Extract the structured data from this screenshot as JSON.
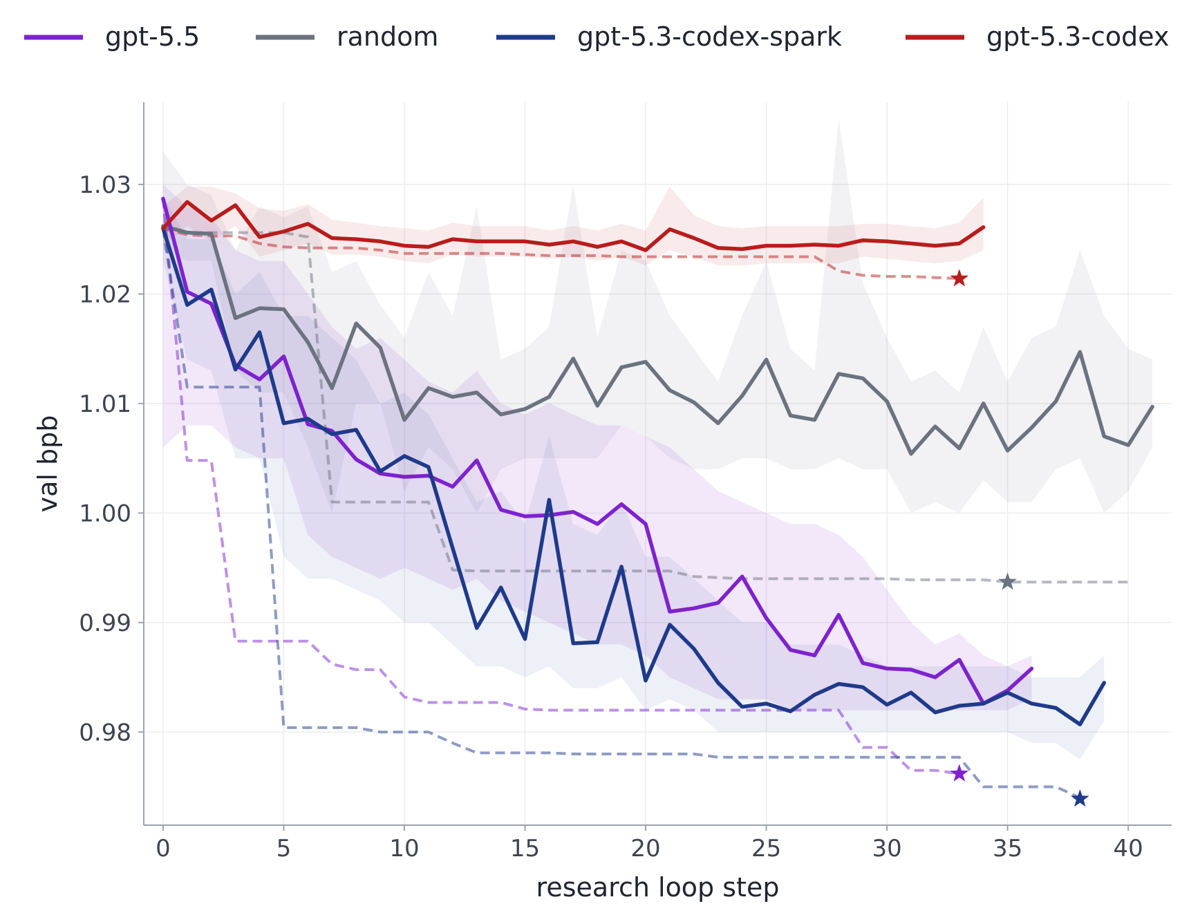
{
  "chart_data": {
    "type": "line",
    "xlabel": "research loop step",
    "ylabel": "val bpb",
    "xlim": [
      -0.8,
      41.8
    ],
    "ylim": [
      0.9715,
      1.0375
    ],
    "xticks": [
      0,
      5,
      10,
      15,
      20,
      25,
      30,
      35,
      40
    ],
    "yticks": [
      0.98,
      0.99,
      1.0,
      1.01,
      1.02,
      1.03
    ],
    "ytick_labels": [
      "0.98",
      "0.99",
      "1.00",
      "1.01",
      "1.02",
      "1.03"
    ],
    "grid": true,
    "legend_position": "top",
    "series": [
      {
        "name": "gpt-5.5",
        "color": "#7e22ce",
        "x": [
          0,
          1,
          2,
          3,
          4,
          5,
          6,
          7,
          8,
          9,
          10,
          11,
          12,
          13,
          14,
          15,
          16,
          17,
          18,
          19,
          20,
          21,
          22,
          23,
          24,
          25,
          26,
          27,
          28,
          29,
          30,
          31,
          32,
          33,
          34,
          35,
          36
        ],
        "values": [
          1.0287,
          1.0202,
          1.0191,
          1.0135,
          1.0122,
          1.0143,
          1.0081,
          1.0075,
          1.0049,
          1.0036,
          1.0033,
          1.0034,
          1.0024,
          1.0048,
          1.0003,
          0.9997,
          0.9998,
          1.0001,
          0.999,
          1.0008,
          0.999,
          0.991,
          0.9913,
          0.9918,
          0.9942,
          0.9904,
          0.9875,
          0.987,
          0.9907,
          0.9863,
          0.9858,
          0.9857,
          0.985,
          0.9866,
          0.9826,
          0.9838,
          0.9858
        ],
        "band_upper": [
          1.03,
          1.028,
          1.027,
          1.024,
          1.023,
          1.023,
          1.02,
          1.017,
          1.015,
          1.016,
          1.014,
          1.012,
          1.011,
          1.013,
          1.01,
          1.009,
          1.01,
          1.009,
          1.008,
          1.008,
          1.007,
          1.006,
          1.004,
          1.002,
          1.001,
          1.0,
          0.999,
          0.999,
          0.998,
          0.996,
          0.993,
          0.99,
          0.988,
          0.989,
          0.987,
          0.986,
          0.987
        ],
        "band_lower": [
          1.006,
          1.008,
          1.008,
          1.006,
          1.005,
          1.005,
          0.998,
          0.996,
          0.995,
          0.994,
          0.995,
          0.994,
          0.993,
          0.994,
          0.992,
          0.991,
          0.99,
          0.989,
          0.988,
          0.988,
          0.987,
          0.985,
          0.984,
          0.983,
          0.983,
          0.983,
          0.982,
          0.982,
          0.982,
          0.982,
          0.982,
          0.982,
          0.982,
          0.982,
          0.982,
          0.982,
          0.983
        ],
        "best_so_far_x": [
          0,
          1,
          2,
          3,
          4,
          5,
          6,
          7,
          8,
          9,
          10,
          11,
          12,
          13,
          14,
          15,
          16,
          17,
          18,
          19,
          20,
          21,
          22,
          23,
          24,
          25,
          26,
          27,
          28,
          29,
          30,
          31,
          32,
          33
        ],
        "best_so_far": [
          1.0287,
          1.0048,
          1.0048,
          0.9883,
          0.9883,
          0.9883,
          0.9883,
          0.9862,
          0.9857,
          0.9857,
          0.9832,
          0.9827,
          0.9827,
          0.9827,
          0.9827,
          0.9821,
          0.982,
          0.982,
          0.982,
          0.982,
          0.982,
          0.982,
          0.982,
          0.982,
          0.982,
          0.982,
          0.982,
          0.982,
          0.982,
          0.9786,
          0.9786,
          0.9765,
          0.9765,
          0.9762
        ],
        "best": {
          "x": 33,
          "y": 0.9762
        }
      },
      {
        "name": "random",
        "color": "#6b7280",
        "x": [
          0,
          1,
          2,
          3,
          4,
          5,
          6,
          7,
          8,
          9,
          10,
          11,
          12,
          13,
          14,
          15,
          16,
          17,
          18,
          19,
          20,
          21,
          22,
          23,
          24,
          25,
          26,
          27,
          28,
          29,
          30,
          31,
          32,
          33,
          34,
          35,
          36,
          37,
          38,
          39,
          40,
          41
        ],
        "values": [
          1.0262,
          1.0256,
          1.0255,
          1.0178,
          1.0187,
          1.0186,
          1.0156,
          1.0114,
          1.0173,
          1.0151,
          1.0085,
          1.0114,
          1.0106,
          1.011,
          1.009,
          1.0095,
          1.0106,
          1.0141,
          1.0098,
          1.0133,
          1.0138,
          1.0112,
          1.0101,
          1.0082,
          1.0107,
          1.014,
          1.0089,
          1.0085,
          1.0127,
          1.0123,
          1.0102,
          1.0054,
          1.0079,
          1.0059,
          1.01,
          1.0057,
          1.0078,
          1.0102,
          1.0147,
          1.007,
          1.0062,
          1.0097
        ],
        "band_upper": [
          1.033,
          1.03,
          1.029,
          1.024,
          1.028,
          1.027,
          1.028,
          1.022,
          1.023,
          1.019,
          1.016,
          1.022,
          1.018,
          1.028,
          1.014,
          1.015,
          1.017,
          1.03,
          1.016,
          1.024,
          1.023,
          1.018,
          1.015,
          1.012,
          1.018,
          1.023,
          1.015,
          1.013,
          1.036,
          1.021,
          1.016,
          1.012,
          1.013,
          1.011,
          1.017,
          1.012,
          1.016,
          1.017,
          1.024,
          1.018,
          1.015,
          1.014
        ],
        "band_lower": [
          1.024,
          1.023,
          1.023,
          1.013,
          1.011,
          1.011,
          1.006,
          1.0,
          1.01,
          1.01,
          1.002,
          1.006,
          1.004,
          1.0,
          1.004,
          1.005,
          1.005,
          1.005,
          1.005,
          1.008,
          1.007,
          1.005,
          1.004,
          1.004,
          1.005,
          1.005,
          1.004,
          1.004,
          1.005,
          1.004,
          1.004,
          1.0,
          1.001,
          1.0,
          1.003,
          1.001,
          1.001,
          1.004,
          1.005,
          1.0,
          1.002,
          1.006
        ],
        "best_so_far_x": [
          0,
          1,
          2,
          3,
          4,
          5,
          6,
          7,
          8,
          9,
          10,
          11,
          12,
          13,
          14,
          15,
          16,
          17,
          18,
          19,
          20,
          21,
          22,
          23,
          24,
          25,
          26,
          27,
          28,
          29,
          30,
          31,
          32,
          33,
          34,
          35,
          36,
          37,
          38,
          39,
          40
        ],
        "best_so_far": [
          1.0262,
          1.0256,
          1.0256,
          1.0256,
          1.0256,
          1.0256,
          1.0252,
          1.001,
          1.001,
          1.001,
          1.001,
          1.001,
          0.9948,
          0.9947,
          0.9947,
          0.9947,
          0.9947,
          0.9947,
          0.9947,
          0.9947,
          0.9947,
          0.9947,
          0.9942,
          0.9941,
          0.994,
          0.994,
          0.994,
          0.994,
          0.994,
          0.994,
          0.994,
          0.9939,
          0.9939,
          0.9939,
          0.9939,
          0.9937,
          0.9937,
          0.9937,
          0.9937,
          0.9937,
          0.9937
        ],
        "best": {
          "x": 35,
          "y": 0.9937
        }
      },
      {
        "name": "gpt-5.3-codex-spark",
        "color": "#1e3a8a",
        "x": [
          0,
          1,
          2,
          3,
          4,
          5,
          6,
          7,
          8,
          9,
          10,
          11,
          12,
          13,
          14,
          15,
          16,
          17,
          18,
          19,
          20,
          21,
          22,
          23,
          24,
          25,
          26,
          27,
          28,
          29,
          30,
          31,
          32,
          33,
          34,
          35,
          36,
          37,
          38,
          39
        ],
        "values": [
          1.026,
          1.019,
          1.0204,
          1.0131,
          1.0165,
          1.0082,
          1.0086,
          1.0072,
          1.0076,
          1.0038,
          1.0052,
          1.0042,
          0.9968,
          0.9895,
          0.9932,
          0.9885,
          1.0012,
          0.9881,
          0.9882,
          0.9951,
          0.9847,
          0.9898,
          0.9876,
          0.9845,
          0.9823,
          0.9826,
          0.9819,
          0.9834,
          0.9844,
          0.9841,
          0.9825,
          0.9836,
          0.9818,
          0.9824,
          0.9826,
          0.9836,
          0.9826,
          0.9822,
          0.9807,
          0.9845
        ],
        "band_upper": [
          1.029,
          1.025,
          1.025,
          1.02,
          1.022,
          1.018,
          1.018,
          1.016,
          1.014,
          1.01,
          1.011,
          1.009,
          1.005,
          1.001,
          1.002,
          0.999,
          1.007,
          0.999,
          0.998,
          1.001,
          0.996,
          0.996,
          0.994,
          0.992,
          0.99,
          0.99,
          0.988,
          0.988,
          0.988,
          0.987,
          0.986,
          0.986,
          0.986,
          0.986,
          0.986,
          0.986,
          0.985,
          0.985,
          0.985,
          0.987
        ],
        "band_lower": [
          1.023,
          1.014,
          1.013,
          1.005,
          1.005,
          0.996,
          0.994,
          0.994,
          0.993,
          0.992,
          0.99,
          0.99,
          0.988,
          0.986,
          0.986,
          0.985,
          0.986,
          0.984,
          0.984,
          0.985,
          0.982,
          0.983,
          0.982,
          0.98,
          0.98,
          0.98,
          0.98,
          0.98,
          0.98,
          0.98,
          0.98,
          0.98,
          0.98,
          0.98,
          0.98,
          0.98,
          0.979,
          0.979,
          0.9775,
          0.981
        ],
        "best_so_far_x": [
          0,
          1,
          2,
          3,
          4,
          5,
          6,
          7,
          8,
          9,
          10,
          11,
          12,
          13,
          14,
          15,
          16,
          17,
          18,
          19,
          20,
          21,
          22,
          23,
          24,
          25,
          26,
          27,
          28,
          29,
          30,
          31,
          32,
          33,
          34,
          35,
          36,
          37,
          38
        ],
        "best_so_far": [
          1.026,
          1.0115,
          1.0115,
          1.0115,
          1.0115,
          0.9804,
          0.9804,
          0.9804,
          0.9804,
          0.98,
          0.98,
          0.98,
          0.979,
          0.9781,
          0.9781,
          0.9781,
          0.9781,
          0.978,
          0.978,
          0.978,
          0.978,
          0.978,
          0.978,
          0.9777,
          0.9777,
          0.9777,
          0.9777,
          0.9777,
          0.9777,
          0.9777,
          0.9777,
          0.9777,
          0.9777,
          0.9777,
          0.975,
          0.975,
          0.975,
          0.975,
          0.974
        ],
        "best": {
          "x": 38,
          "y": 0.9739
        }
      },
      {
        "name": "gpt-5.3-codex",
        "color": "#b91c1c",
        "x": [
          0,
          1,
          2,
          3,
          4,
          5,
          6,
          7,
          8,
          9,
          10,
          11,
          12,
          13,
          14,
          15,
          16,
          17,
          18,
          19,
          20,
          21,
          22,
          23,
          24,
          25,
          26,
          27,
          28,
          29,
          30,
          31,
          32,
          33,
          34
        ],
        "values": [
          1.026,
          1.0284,
          1.0267,
          1.0281,
          1.0252,
          1.0257,
          1.0264,
          1.0251,
          1.025,
          1.0248,
          1.0244,
          1.0243,
          1.025,
          1.0248,
          1.0248,
          1.0248,
          1.0245,
          1.0248,
          1.0243,
          1.0248,
          1.024,
          1.0259,
          1.0251,
          1.0242,
          1.0241,
          1.0244,
          1.0244,
          1.0245,
          1.0244,
          1.0249,
          1.0248,
          1.0246,
          1.0244,
          1.0246,
          1.0261
        ],
        "band_upper": [
          1.028,
          1.0298,
          1.0298,
          1.0292,
          1.0278,
          1.0276,
          1.0282,
          1.0268,
          1.0265,
          1.0262,
          1.026,
          1.0258,
          1.0265,
          1.0262,
          1.0262,
          1.0262,
          1.0258,
          1.0262,
          1.0258,
          1.0264,
          1.0258,
          1.0298,
          1.0272,
          1.0262,
          1.026,
          1.0262,
          1.0262,
          1.0262,
          1.0262,
          1.0264,
          1.0264,
          1.0262,
          1.026,
          1.0265,
          1.0288
        ],
        "band_lower": [
          1.0245,
          1.0262,
          1.0248,
          1.0262,
          1.0234,
          1.024,
          1.0246,
          1.0236,
          1.0236,
          1.0234,
          1.023,
          1.0228,
          1.0236,
          1.0234,
          1.0234,
          1.0234,
          1.0232,
          1.0234,
          1.023,
          1.0234,
          1.0226,
          1.024,
          1.0234,
          1.0226,
          1.0226,
          1.0228,
          1.0228,
          1.0228,
          1.0228,
          1.0234,
          1.0232,
          1.023,
          1.0228,
          1.023,
          1.024
        ],
        "best_so_far_x": [
          0,
          1,
          2,
          3,
          4,
          5,
          6,
          7,
          8,
          9,
          10,
          11,
          12,
          13,
          14,
          15,
          16,
          17,
          18,
          19,
          20,
          21,
          22,
          23,
          24,
          25,
          26,
          27,
          28,
          29,
          30,
          31,
          32,
          33
        ],
        "best_so_far": [
          1.026,
          1.0254,
          1.0253,
          1.0253,
          1.0246,
          1.0243,
          1.0242,
          1.0242,
          1.0242,
          1.024,
          1.0237,
          1.0237,
          1.0237,
          1.0237,
          1.0237,
          1.0236,
          1.0235,
          1.0235,
          1.0235,
          1.0234,
          1.0234,
          1.0234,
          1.0234,
          1.0234,
          1.0234,
          1.0234,
          1.0234,
          1.0234,
          1.0221,
          1.0217,
          1.0216,
          1.0216,
          1.0215,
          1.0214
        ],
        "best": {
          "x": 33,
          "y": 1.0214
        }
      }
    ]
  }
}
